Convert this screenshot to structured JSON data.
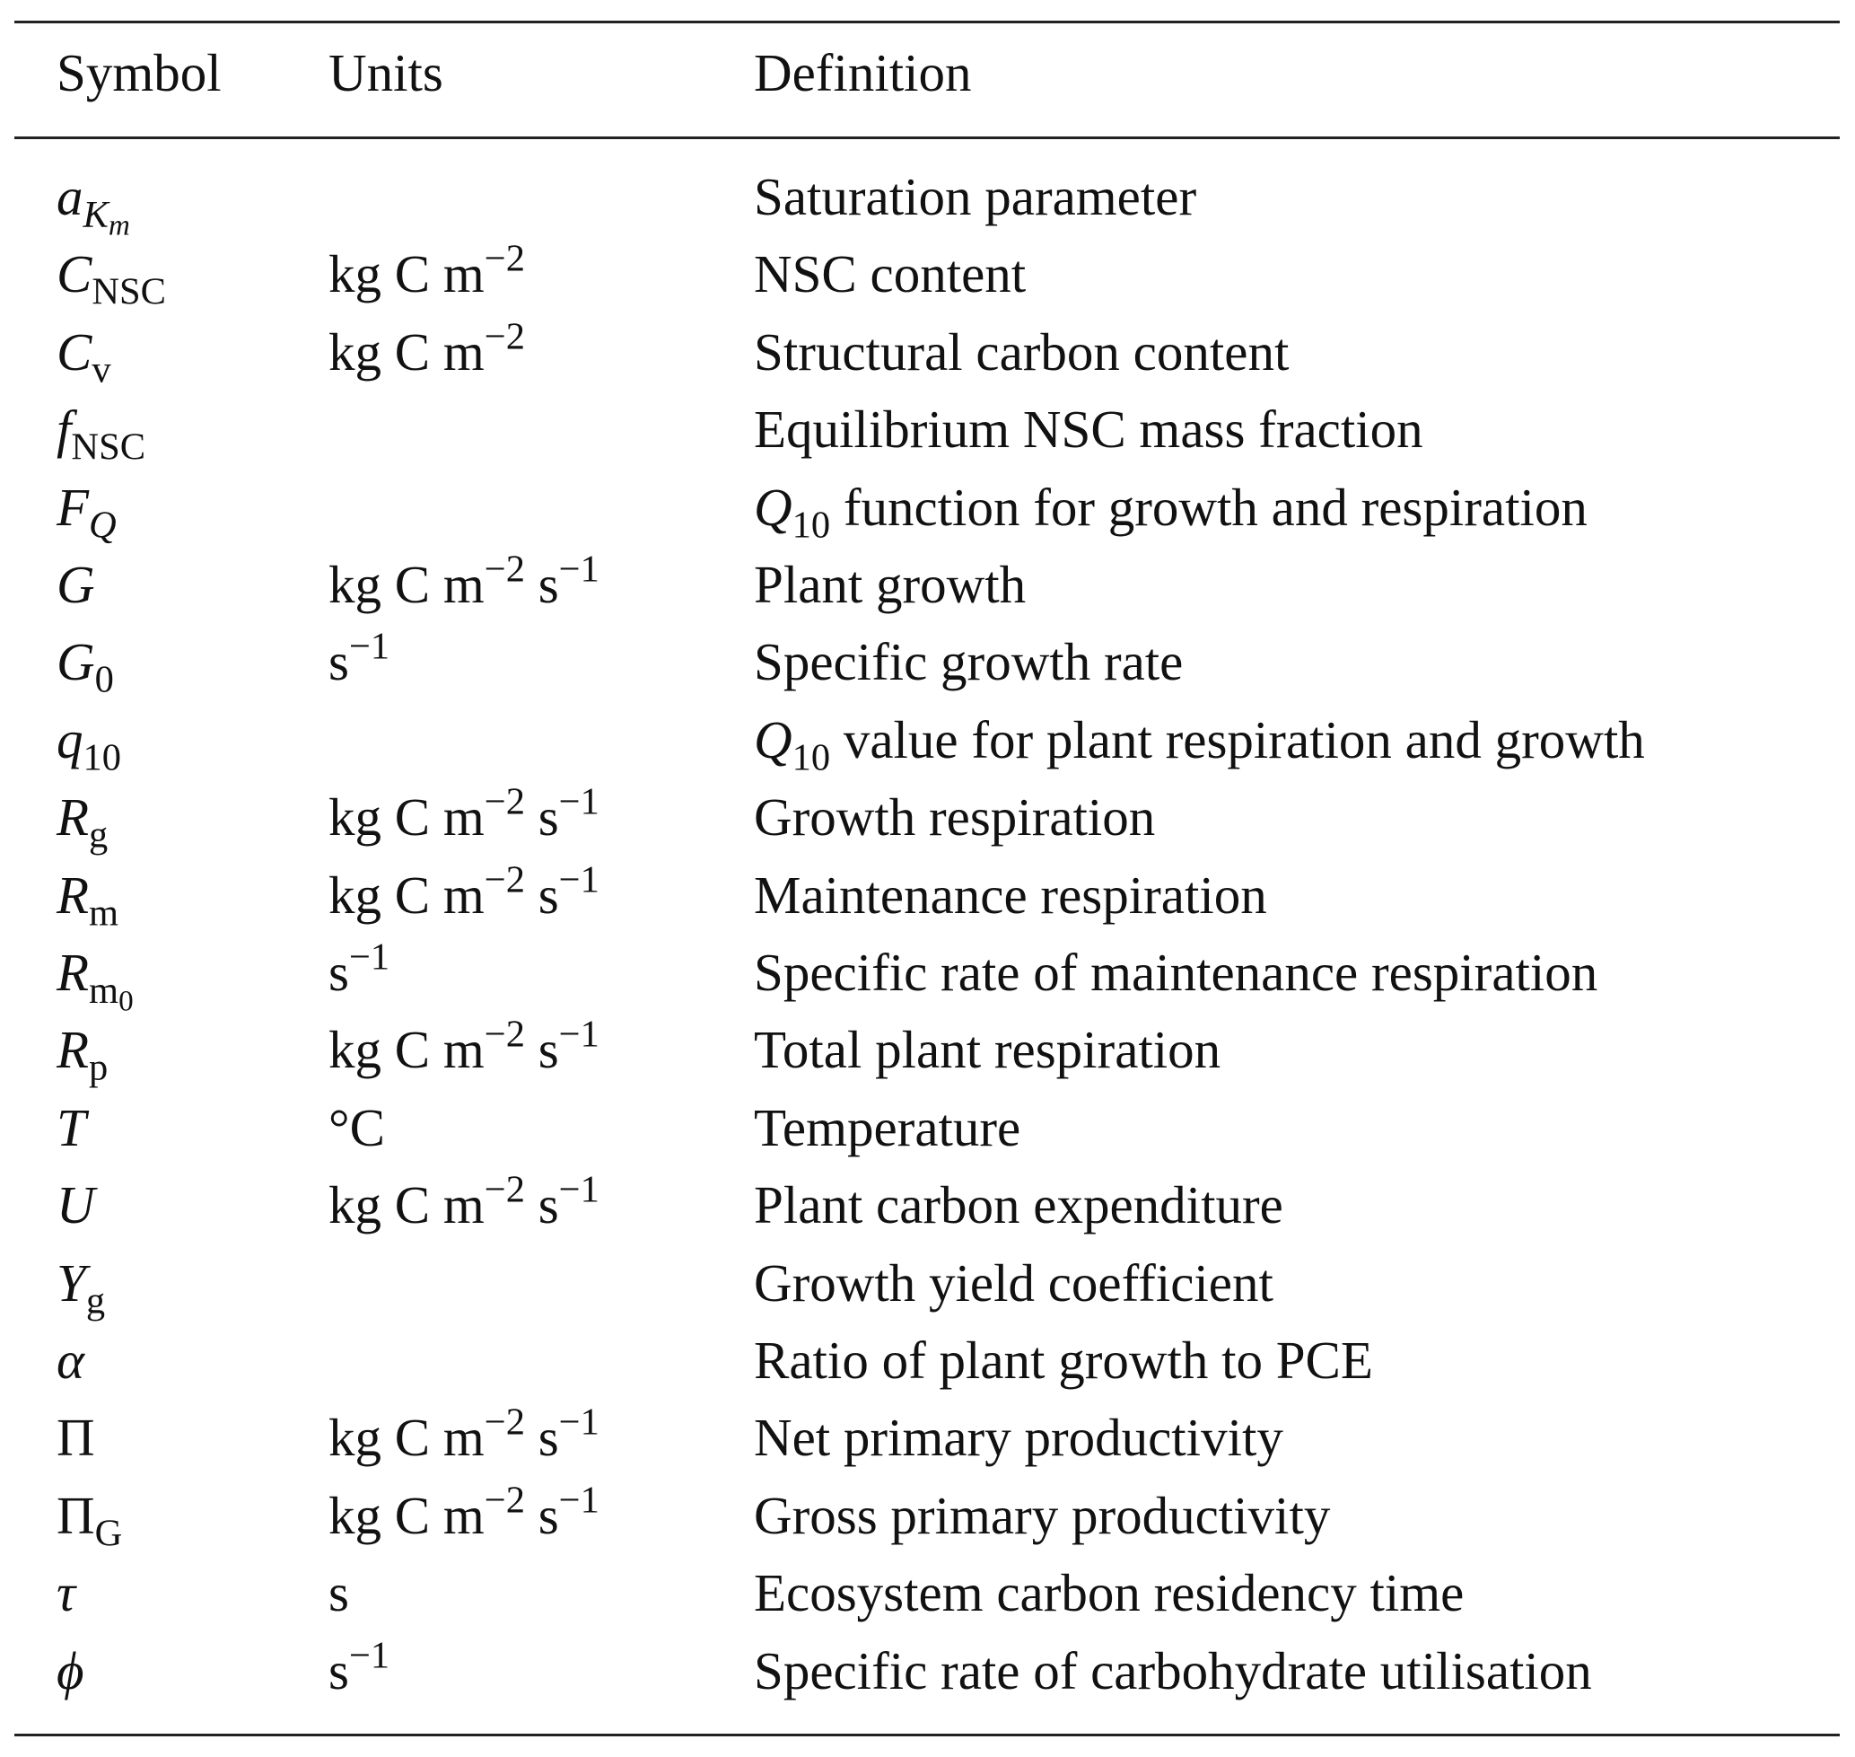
{
  "table": {
    "headers": {
      "symbol": "Symbol",
      "units": "Units",
      "definition": "Definition"
    },
    "rows": [
      {
        "sym_base": "a",
        "sym_sub": "K",
        "sym_subsub": "m",
        "sym_sub_italic": true,
        "units": "",
        "definition": "Saturation parameter"
      },
      {
        "sym_base": "C",
        "sym_sub": "NSC",
        "units_base": "kg C m",
        "units_exp1": "−2",
        "units_s": "",
        "units_exp2": "",
        "definition": "NSC content"
      },
      {
        "sym_base": "C",
        "sym_sub": "v",
        "units_base": "kg C m",
        "units_exp1": "−2",
        "units_s": "",
        "units_exp2": "",
        "definition": "Structural carbon content"
      },
      {
        "sym_base": "f",
        "sym_sub": "NSC",
        "units_base": "",
        "definition": "Equilibrium NSC mass fraction"
      },
      {
        "sym_base": "F",
        "sym_sub": "Q",
        "sym_sub_italic": true,
        "units_base": "",
        "def_q": "Q",
        "def_q_sub": "10",
        "definition": " function for growth and respiration"
      },
      {
        "sym_base": "G",
        "sym_sub": "",
        "units_base": "kg C m",
        "units_exp1": "−2",
        "units_s": " s",
        "units_exp2": "−1",
        "definition": "Plant growth"
      },
      {
        "sym_base": "G",
        "sym_sub": "0",
        "units_base": "s",
        "units_exp1": "−1",
        "units_s": "",
        "units_exp2": "",
        "definition": "Specific growth rate"
      },
      {
        "sym_base": "q",
        "sym_sub": "10",
        "units_base": "",
        "def_q": "Q",
        "def_q_sub": "10",
        "definition": " value for plant respiration and growth"
      },
      {
        "sym_base": "R",
        "sym_sub": "g",
        "units_base": "kg C m",
        "units_exp1": "−2",
        "units_s": " s",
        "units_exp2": "−1",
        "definition": "Growth respiration"
      },
      {
        "sym_base": "R",
        "sym_sub": "m",
        "units_base": "kg C m",
        "units_exp1": "−2",
        "units_s": " s",
        "units_exp2": "−1",
        "definition": "Maintenance respiration"
      },
      {
        "sym_base": "R",
        "sym_sub": "m",
        "sym_subsub": "0",
        "units_base": "s",
        "units_exp1": "−1",
        "units_s": "",
        "units_exp2": "",
        "definition": "Specific rate of maintenance respiration"
      },
      {
        "sym_base": "R",
        "sym_sub": "p",
        "units_base": "kg C m",
        "units_exp1": "−2",
        "units_s": " s",
        "units_exp2": "−1",
        "definition": "Total plant respiration"
      },
      {
        "sym_base": "T",
        "sym_sub": "",
        "units_base": "°C",
        "units_exp1": "",
        "units_s": "",
        "units_exp2": "",
        "definition": "Temperature"
      },
      {
        "sym_base": "U",
        "sym_sub": "",
        "units_base": "kg C m",
        "units_exp1": "−2",
        "units_s": " s",
        "units_exp2": "−1",
        "definition": "Plant carbon expenditure"
      },
      {
        "sym_base": "Y",
        "sym_sub": "g",
        "units_base": "",
        "definition": "Growth yield coefficient"
      },
      {
        "sym_base": "α",
        "sym_sub": "",
        "units_base": "",
        "definition": "Ratio of plant growth to PCE"
      },
      {
        "sym_base": "Π",
        "sym_sub": "",
        "sym_upright": true,
        "units_base": "kg C m",
        "units_exp1": "−2",
        "units_s": " s",
        "units_exp2": "−1",
        "definition": "Net primary productivity"
      },
      {
        "sym_base": "Π",
        "sym_sub": "G",
        "sym_upright": true,
        "units_base": "kg C m",
        "units_exp1": "−2",
        "units_s": " s",
        "units_exp2": "−1",
        "definition": "Gross primary productivity"
      },
      {
        "sym_base": "τ",
        "sym_sub": "",
        "units_base": "s",
        "units_exp1": "",
        "units_s": "",
        "units_exp2": "",
        "definition": "Ecosystem carbon residency time"
      },
      {
        "sym_base": "ϕ",
        "sym_sub": "",
        "units_base": "s",
        "units_exp1": "−1",
        "units_s": "",
        "units_exp2": "",
        "definition": "Specific rate of carbohydrate utilisation"
      }
    ]
  }
}
